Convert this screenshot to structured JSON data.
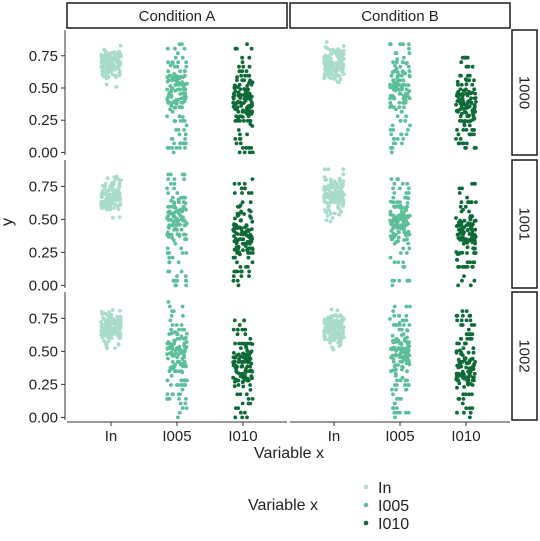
{
  "chart_data": {
    "type": "scatter",
    "style": "faceted jitter strip plot",
    "xlabel": "Variable x",
    "ylabel": "y",
    "categories": [
      "In",
      "I005",
      "I010"
    ],
    "ylim": [
      -0.02,
      0.95
    ],
    "yticks": [
      "0.00",
      "0.25",
      "0.50",
      "0.75"
    ],
    "ytick_values": [
      0,
      0.25,
      0.5,
      0.75
    ],
    "facet_cols": [
      "Condition A",
      "Condition B"
    ],
    "facet_rows": [
      "1000",
      "1001",
      "1002"
    ],
    "legend": {
      "title": "Variable x",
      "position": "bottom",
      "entries": [
        {
          "label": "In",
          "color": "#a8dcc9"
        },
        {
          "label": "I005",
          "color": "#5cbf98"
        },
        {
          "label": "I010",
          "color": "#0e6a36"
        }
      ]
    },
    "panels": [
      {
        "col": "Condition A",
        "row": "1000",
        "series": [
          {
            "category": "In",
            "y_min": 0.38,
            "y_max": 0.88,
            "y_center": 0.68
          },
          {
            "category": "I005",
            "y_min": 0.0,
            "y_max": 0.88,
            "y_center": 0.5
          },
          {
            "category": "I010",
            "y_min": 0.0,
            "y_max": 0.85,
            "y_center": 0.4
          }
        ]
      },
      {
        "col": "Condition B",
        "row": "1000",
        "series": [
          {
            "category": "In",
            "y_min": 0.4,
            "y_max": 0.93,
            "y_center": 0.68
          },
          {
            "category": "I005",
            "y_min": 0.0,
            "y_max": 0.88,
            "y_center": 0.5
          },
          {
            "category": "I010",
            "y_min": 0.0,
            "y_max": 0.75,
            "y_center": 0.38
          }
        ]
      },
      {
        "col": "Condition A",
        "row": "1001",
        "series": [
          {
            "category": "In",
            "y_min": 0.38,
            "y_max": 0.88,
            "y_center": 0.68
          },
          {
            "category": "I005",
            "y_min": 0.0,
            "y_max": 0.85,
            "y_center": 0.5
          },
          {
            "category": "I010",
            "y_min": 0.0,
            "y_max": 0.82,
            "y_center": 0.38
          }
        ]
      },
      {
        "col": "Condition B",
        "row": "1001",
        "series": [
          {
            "category": "In",
            "y_min": 0.28,
            "y_max": 0.88,
            "y_center": 0.68
          },
          {
            "category": "I005",
            "y_min": 0.0,
            "y_max": 0.82,
            "y_center": 0.5
          },
          {
            "category": "I010",
            "y_min": 0.0,
            "y_max": 0.78,
            "y_center": 0.38
          }
        ]
      },
      {
        "col": "Condition A",
        "row": "1002",
        "series": [
          {
            "category": "In",
            "y_min": 0.33,
            "y_max": 0.88,
            "y_center": 0.68
          },
          {
            "category": "I005",
            "y_min": 0.0,
            "y_max": 0.88,
            "y_center": 0.5
          },
          {
            "category": "I010",
            "y_min": 0.0,
            "y_max": 0.75,
            "y_center": 0.38
          }
        ]
      },
      {
        "col": "Condition B",
        "row": "1002",
        "series": [
          {
            "category": "In",
            "y_min": 0.36,
            "y_max": 0.88,
            "y_center": 0.68
          },
          {
            "category": "I005",
            "y_min": 0.0,
            "y_max": 0.85,
            "y_center": 0.5
          },
          {
            "category": "I010",
            "y_min": 0.0,
            "y_max": 0.82,
            "y_center": 0.38
          }
        ]
      }
    ],
    "points_per_category": 130
  }
}
